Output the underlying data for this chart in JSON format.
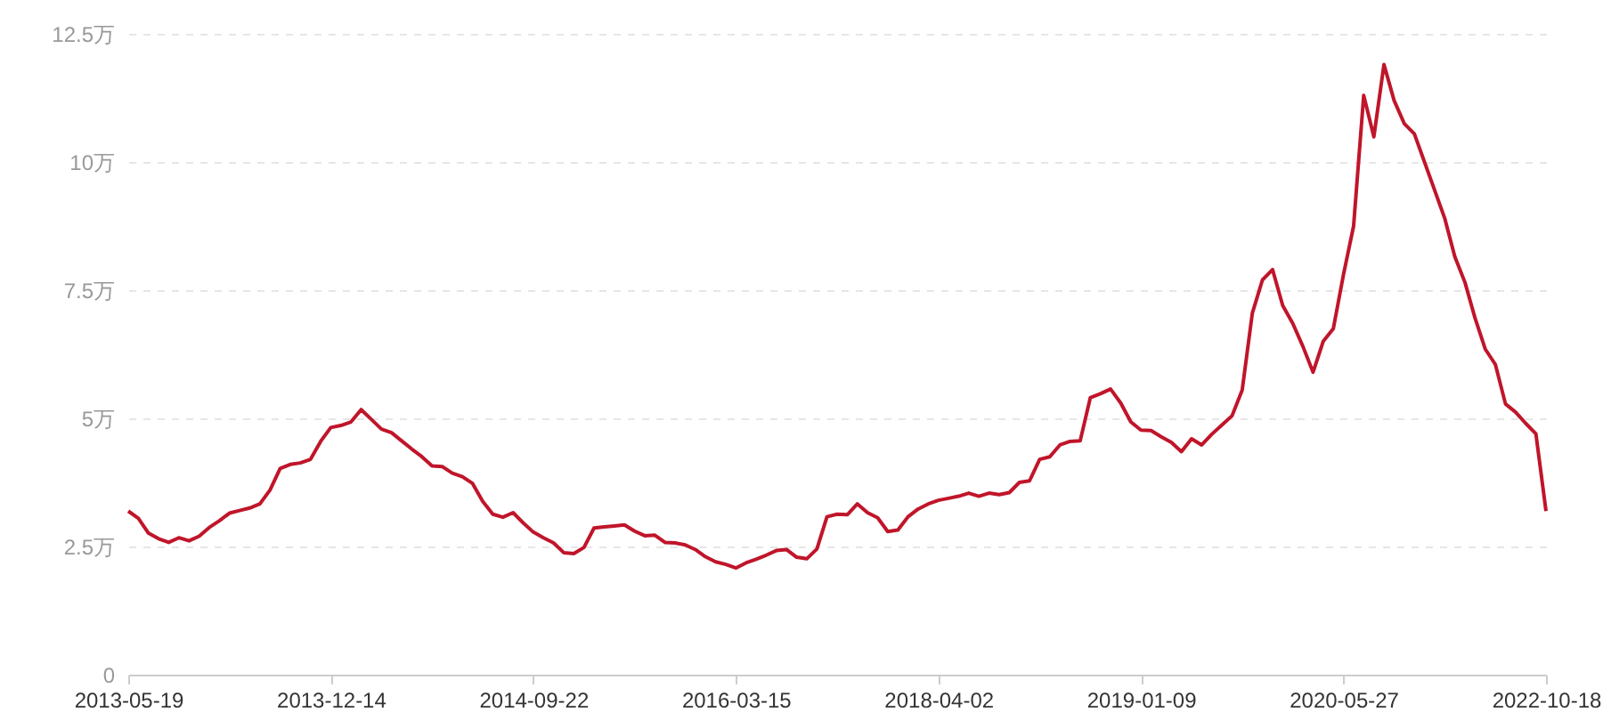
{
  "chart_data": {
    "type": "line",
    "categories": [
      "2013-05-19",
      null,
      null,
      null,
      null,
      null,
      null,
      null,
      null,
      null,
      null,
      null,
      null,
      null,
      null,
      null,
      null,
      null,
      null,
      null,
      "2013-12-14",
      null,
      null,
      null,
      null,
      null,
      null,
      null,
      null,
      null,
      null,
      null,
      null,
      null,
      null,
      null,
      null,
      null,
      null,
      null,
      "2014-09-22",
      null,
      null,
      null,
      null,
      null,
      null,
      null,
      null,
      null,
      null,
      null,
      null,
      null,
      null,
      null,
      null,
      null,
      null,
      null,
      "2016-03-15",
      null,
      null,
      null,
      null,
      null,
      null,
      null,
      null,
      null,
      null,
      null,
      null,
      null,
      null,
      null,
      null,
      null,
      null,
      null,
      "2018-04-02",
      null,
      null,
      null,
      null,
      null,
      null,
      null,
      null,
      null,
      null,
      null,
      null,
      null,
      null,
      null,
      null,
      null,
      null,
      null,
      "2019-01-09",
      null,
      null,
      null,
      null,
      null,
      null,
      null,
      null,
      null,
      null,
      null,
      null,
      null,
      null,
      null,
      null,
      null,
      null,
      null,
      "2020-05-27",
      null,
      null,
      null,
      null,
      null,
      null,
      null,
      null,
      null,
      null,
      null,
      null,
      null,
      null,
      null,
      null,
      null,
      null,
      null,
      "2022-10-18"
    ],
    "series": [
      {
        "color": "#c0152a",
        "values": [
          3.19,
          3.05,
          2.76,
          2.65,
          2.58,
          2.67,
          2.61,
          2.7,
          2.87,
          3.0,
          3.15,
          3.2,
          3.25,
          3.33,
          3.6,
          4.02,
          4.1,
          4.13,
          4.2,
          4.55,
          4.82,
          4.86,
          4.93,
          5.17,
          4.98,
          4.79,
          4.72,
          4.56,
          4.4,
          4.25,
          4.07,
          4.06,
          3.93,
          3.86,
          3.73,
          3.38,
          3.13,
          3.07,
          3.16,
          2.96,
          2.78,
          2.67,
          2.57,
          2.38,
          2.36,
          2.48,
          2.86,
          2.88,
          2.9,
          2.92,
          2.8,
          2.71,
          2.72,
          2.58,
          2.57,
          2.53,
          2.44,
          2.3,
          2.2,
          2.15,
          2.08,
          2.18,
          2.25,
          2.33,
          2.42,
          2.44,
          2.29,
          2.26,
          2.45,
          3.08,
          3.13,
          3.12,
          3.33,
          3.16,
          3.06,
          2.79,
          2.82,
          3.08,
          3.23,
          3.33,
          3.4,
          3.44,
          3.48,
          3.54,
          3.48,
          3.54,
          3.51,
          3.55,
          3.75,
          3.78,
          4.2,
          4.25,
          4.48,
          4.55,
          4.56,
          5.4,
          5.48,
          5.57,
          5.3,
          4.93,
          4.77,
          4.76,
          4.64,
          4.53,
          4.35,
          4.6,
          4.48,
          4.69,
          4.87,
          5.05,
          5.55,
          7.05,
          7.7,
          7.9,
          7.2,
          6.85,
          6.4,
          5.9,
          6.5,
          6.75,
          7.8,
          8.75,
          11.3,
          10.49,
          11.9,
          11.2,
          10.75,
          10.55,
          10.0,
          9.45,
          8.9,
          8.15,
          7.65,
          6.95,
          6.35,
          6.05,
          5.28,
          5.12,
          4.9,
          4.7,
          3.19
        ]
      }
    ],
    "ylim": [
      0,
      12.5
    ],
    "yticks": [
      0,
      {
        "value": 2.5,
        "label": "2.5万"
      },
      {
        "value": 5,
        "label": "5万"
      },
      {
        "value": 7.5,
        "label": "7.5万"
      },
      {
        "value": 10,
        "label": "10万"
      },
      {
        "value": 12.5,
        "label": "12.5万"
      }
    ],
    "grid": "y",
    "line_style": "solid"
  }
}
